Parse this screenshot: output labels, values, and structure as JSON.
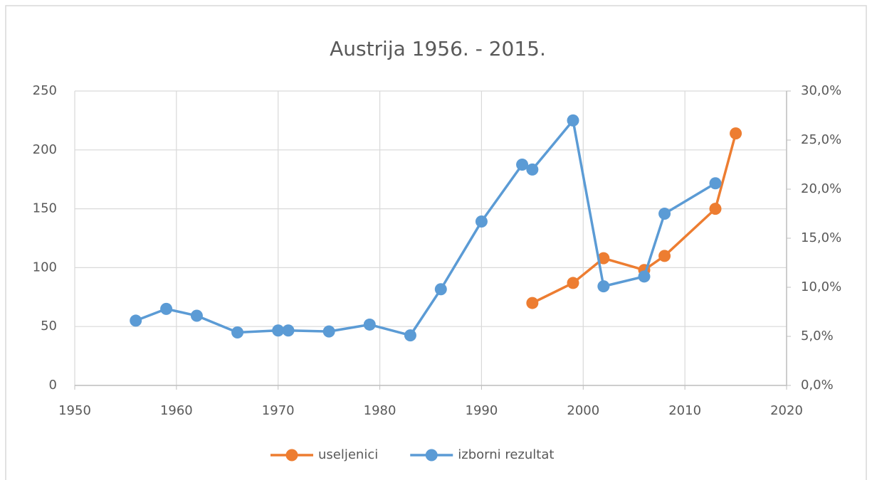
{
  "chart_data": {
    "type": "line",
    "title": "Austrija 1956. - 2015.",
    "xlim": [
      1950,
      2020
    ],
    "xticks": [
      1950,
      1960,
      1970,
      1980,
      1990,
      2000,
      2010,
      2020
    ],
    "ylim": [
      0,
      250
    ],
    "yticks": [
      0,
      50,
      100,
      150,
      200,
      250
    ],
    "y2lim": [
      0,
      30
    ],
    "y2ticks": [
      {
        "value": 0,
        "label": "0,0%"
      },
      {
        "value": 5,
        "label": "5,0%"
      },
      {
        "value": 10,
        "label": "10,0%"
      },
      {
        "value": 15,
        "label": "15,0%"
      },
      {
        "value": 20,
        "label": "20,0%"
      },
      {
        "value": 25,
        "label": "25,0%"
      },
      {
        "value": 30,
        "label": "30,0%"
      }
    ],
    "grid": true,
    "legend": "bottom",
    "series": [
      {
        "name": "useljenici",
        "color": "#ed7d31",
        "x": [
          1995,
          1999,
          2002,
          2006,
          2008,
          2013,
          2015
        ],
        "values": [
          70,
          87,
          108,
          98,
          110,
          150,
          214
        ]
      },
      {
        "name": "izborni rezultat",
        "color": "#5b9bd5",
        "axis": "y2",
        "x": [
          1956,
          1959,
          1962,
          1966,
          1970,
          1971,
          1975,
          1979,
          1983,
          1986,
          1990,
          1994,
          1995,
          1999,
          2002,
          2006,
          2008,
          2013
        ],
        "values": [
          6.6,
          7.8,
          7.1,
          5.4,
          5.6,
          5.6,
          5.5,
          6.2,
          5.1,
          9.8,
          16.7,
          22.5,
          22.0,
          27.0,
          10.1,
          11.1,
          17.5,
          20.6
        ]
      }
    ]
  }
}
